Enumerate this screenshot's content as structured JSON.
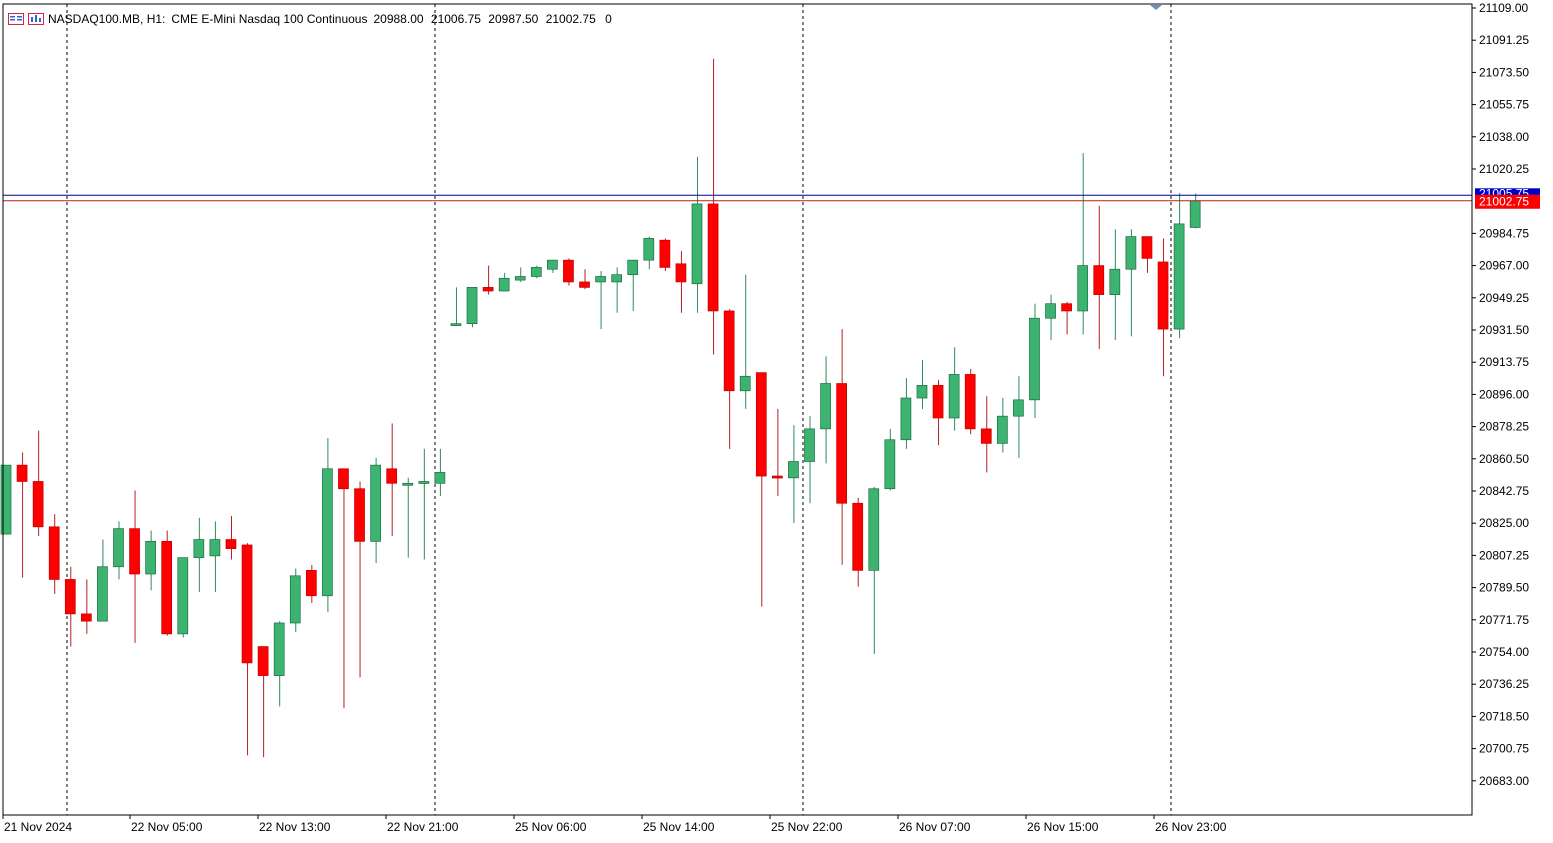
{
  "header": {
    "symbol": "NASDAQ100.MB, H1:",
    "description": "CME E-Mini Nasdaq 100 Continuous",
    "open": "20988.00",
    "high": "21006.75",
    "low": "20987.50",
    "close": "21002.75",
    "volume": "0",
    "icons": [
      "menu-list-icon",
      "chart-window-icon"
    ]
  },
  "price_tags": {
    "ask_label": "21005.75",
    "bid_label": "21002.75",
    "ask_value": 21005.75,
    "bid_value": 21002.75
  },
  "colors": {
    "bull": "#3cb371",
    "bear": "#ff0000",
    "wick_bull": "#2e8b57",
    "wick_bear": "#b22222",
    "ask_line": "#00008b",
    "bid_line": "#b22222",
    "grid": "#000000"
  },
  "chart_data": {
    "type": "candlestick",
    "symbol": "NASDAQ100.MB",
    "timeframe": "H1",
    "ylim": [
      20669,
      21113
    ],
    "y_ticks": [
      "21109.00",
      "21091.25",
      "21073.50",
      "21055.75",
      "21038.00",
      "21020.25",
      "20984.75",
      "20967.00",
      "20949.25",
      "20931.50",
      "20913.75",
      "20896.00",
      "20878.25",
      "20860.50",
      "20842.75",
      "20825.00",
      "20807.25",
      "20789.50",
      "20771.75",
      "20754.00",
      "20736.25",
      "20718.50",
      "20700.75",
      "20683.00"
    ],
    "x_labels": [
      "21 Nov 2024",
      "22 Nov 05:00",
      "22 Nov 13:00",
      "22 Nov 21:00",
      "25 Nov 06:00",
      "25 Nov 14:00",
      "25 Nov 22:00",
      "26 Nov 07:00",
      "26 Nov 15:00",
      "26 Nov 23:00"
    ],
    "separators": [
      "22 Nov 00:00",
      "22 Nov 21:00",
      "25 Nov 22:00",
      "26 Nov 23:00"
    ],
    "candles": [
      {
        "o": 20819,
        "h": 20857,
        "l": 20819,
        "c": 20857
      },
      {
        "o": 20857,
        "h": 20864,
        "l": 20795,
        "c": 20848
      },
      {
        "o": 20848,
        "h": 20876,
        "l": 20818,
        "c": 20823
      },
      {
        "o": 20823,
        "h": 20830,
        "l": 20786,
        "c": 20794
      },
      {
        "o": 20794,
        "h": 20801,
        "l": 20757,
        "c": 20775
      },
      {
        "o": 20775,
        "h": 20794,
        "l": 20764,
        "c": 20771
      },
      {
        "o": 20771,
        "h": 20816,
        "l": 20771,
        "c": 20801
      },
      {
        "o": 20801,
        "h": 20826,
        "l": 20794,
        "c": 20822
      },
      {
        "o": 20822,
        "h": 20843,
        "l": 20759,
        "c": 20797
      },
      {
        "o": 20797,
        "h": 20821,
        "l": 20788,
        "c": 20815
      },
      {
        "o": 20815,
        "h": 20821,
        "l": 20763,
        "c": 20764
      },
      {
        "o": 20764,
        "h": 20805,
        "l": 20762,
        "c": 20806
      },
      {
        "o": 20806,
        "h": 20828,
        "l": 20787,
        "c": 20816
      },
      {
        "o": 20807,
        "h": 20826,
        "l": 20787,
        "c": 20816
      },
      {
        "o": 20816,
        "h": 20829,
        "l": 20805,
        "c": 20811
      },
      {
        "o": 20813,
        "h": 20814,
        "l": 20697,
        "c": 20748
      },
      {
        "o": 20757,
        "h": 20757,
        "l": 20696,
        "c": 20741
      },
      {
        "o": 20741,
        "h": 20771,
        "l": 20724,
        "c": 20770
      },
      {
        "o": 20770,
        "h": 20800,
        "l": 20765,
        "c": 20796
      },
      {
        "o": 20799,
        "h": 20802,
        "l": 20781,
        "c": 20785
      },
      {
        "o": 20785,
        "h": 20872,
        "l": 20776,
        "c": 20855
      },
      {
        "o": 20855,
        "h": 20855,
        "l": 20723,
        "c": 20844
      },
      {
        "o": 20844,
        "h": 20848,
        "l": 20740,
        "c": 20815
      },
      {
        "o": 20815,
        "h": 20861,
        "l": 20803,
        "c": 20857
      },
      {
        "o": 20855,
        "h": 20880,
        "l": 20818,
        "c": 20847
      },
      {
        "o": 20847,
        "h": 20850,
        "l": 20806,
        "c": 20847
      },
      {
        "o": 20848,
        "h": 20866,
        "l": 20805,
        "c": 20848
      },
      {
        "o": 20847,
        "h": 20866,
        "l": 20840,
        "c": 20853
      },
      {
        "o": 20934,
        "h": 20955,
        "l": 20934,
        "c": 20935
      },
      {
        "o": 20935,
        "h": 20955,
        "l": 20933,
        "c": 20955
      },
      {
        "o": 20955,
        "h": 20967,
        "l": 20951,
        "c": 20953
      },
      {
        "o": 20953,
        "h": 20963,
        "l": 20953,
        "c": 20960
      },
      {
        "o": 20959,
        "h": 20966,
        "l": 20958,
        "c": 20961
      },
      {
        "o": 20961,
        "h": 20967,
        "l": 20960,
        "c": 20966
      },
      {
        "o": 20965,
        "h": 20970,
        "l": 20963,
        "c": 20970
      },
      {
        "o": 20970,
        "h": 20971,
        "l": 20956,
        "c": 20958
      },
      {
        "o": 20958,
        "h": 20965,
        "l": 20954,
        "c": 20955
      },
      {
        "o": 20958,
        "h": 20964,
        "l": 20932,
        "c": 20961
      },
      {
        "o": 20958,
        "h": 20966,
        "l": 20941,
        "c": 20962
      },
      {
        "o": 20962,
        "h": 20970,
        "l": 20942,
        "c": 20970
      },
      {
        "o": 20970,
        "h": 20983,
        "l": 20965,
        "c": 20982
      },
      {
        "o": 20981,
        "h": 20982,
        "l": 20964,
        "c": 20966
      },
      {
        "o": 20968,
        "h": 20975,
        "l": 20941,
        "c": 20958
      },
      {
        "o": 20957,
        "h": 21027,
        "l": 20941,
        "c": 21001
      },
      {
        "o": 21001,
        "h": 21081,
        "l": 20918,
        "c": 20942
      },
      {
        "o": 20942,
        "h": 20943,
        "l": 20866,
        "c": 20898
      },
      {
        "o": 20898,
        "h": 20962,
        "l": 20888,
        "c": 20906
      },
      {
        "o": 20908,
        "h": 20908,
        "l": 20779,
        "c": 20851
      },
      {
        "o": 20851,
        "h": 20888,
        "l": 20840,
        "c": 20850
      },
      {
        "o": 20850,
        "h": 20879,
        "l": 20825,
        "c": 20859
      },
      {
        "o": 20859,
        "h": 20884,
        "l": 20836,
        "c": 20877
      },
      {
        "o": 20877,
        "h": 20917,
        "l": 20858,
        "c": 20902
      },
      {
        "o": 20902,
        "h": 20932,
        "l": 20802,
        "c": 20836
      },
      {
        "o": 20836,
        "h": 20839,
        "l": 20790,
        "c": 20799
      },
      {
        "o": 20799,
        "h": 20845,
        "l": 20753,
        "c": 20844
      },
      {
        "o": 20844,
        "h": 20877,
        "l": 20843,
        "c": 20871
      },
      {
        "o": 20871,
        "h": 20905,
        "l": 20866,
        "c": 20894
      },
      {
        "o": 20894,
        "h": 20915,
        "l": 20888,
        "c": 20901
      },
      {
        "o": 20901,
        "h": 20904,
        "l": 20868,
        "c": 20883
      },
      {
        "o": 20883,
        "h": 20922,
        "l": 20876,
        "c": 20907
      },
      {
        "o": 20907,
        "h": 20910,
        "l": 20874,
        "c": 20877
      },
      {
        "o": 20877,
        "h": 20895,
        "l": 20853,
        "c": 20869
      },
      {
        "o": 20869,
        "h": 20894,
        "l": 20864,
        "c": 20884
      },
      {
        "o": 20884,
        "h": 20906,
        "l": 20861,
        "c": 20893
      },
      {
        "o": 20893,
        "h": 20946,
        "l": 20883,
        "c": 20938
      },
      {
        "o": 20938,
        "h": 20951,
        "l": 20926,
        "c": 20946
      },
      {
        "o": 20946,
        "h": 20947,
        "l": 20929,
        "c": 20942
      },
      {
        "o": 20942,
        "h": 21029,
        "l": 20929,
        "c": 20967
      },
      {
        "o": 20967,
        "h": 21000,
        "l": 20921,
        "c": 20951
      },
      {
        "o": 20951,
        "h": 20987,
        "l": 20926,
        "c": 20965
      },
      {
        "o": 20965,
        "h": 20987,
        "l": 20928,
        "c": 20983
      },
      {
        "o": 20983,
        "h": 20982,
        "l": 20963,
        "c": 20971
      },
      {
        "o": 20969,
        "h": 20982,
        "l": 20906,
        "c": 20932
      },
      {
        "o": 20932,
        "h": 21007,
        "l": 20927,
        "c": 20990
      },
      {
        "o": 20988,
        "h": 21006.75,
        "l": 20987.5,
        "c": 21002.75
      }
    ]
  }
}
